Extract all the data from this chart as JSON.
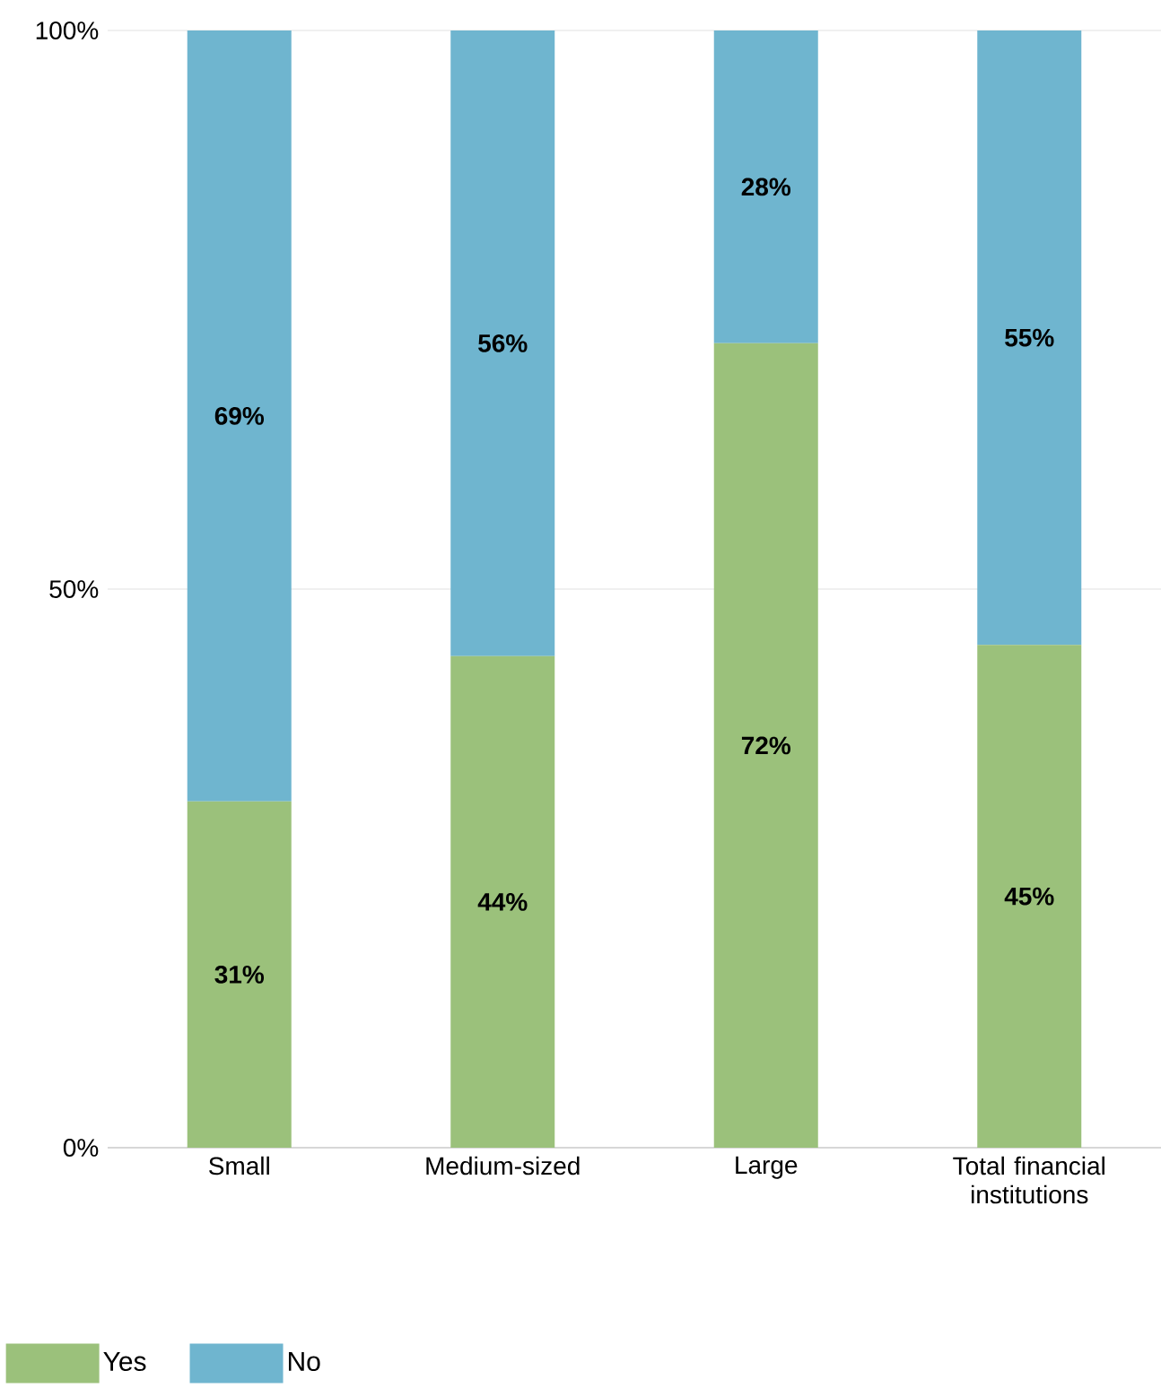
{
  "chart_data": {
    "type": "bar",
    "stacked": true,
    "categories": [
      "Small",
      "Medium-sized",
      "Large",
      "Total financial institutions"
    ],
    "series": [
      {
        "name": "Yes",
        "color": "#9bc17b",
        "values": [
          31,
          44,
          72,
          45
        ],
        "value_labels": [
          "31%",
          "44%",
          "72%",
          "45%"
        ]
      },
      {
        "name": "No",
        "color": "#6fb5cf",
        "values": [
          69,
          56,
          28,
          55
        ],
        "value_labels": [
          "69%",
          "56%",
          "28%",
          "55%"
        ]
      }
    ],
    "ylim": [
      0,
      100
    ],
    "yticks": [
      {
        "value": 0,
        "label": "0%"
      },
      {
        "value": 50,
        "label": "50%"
      },
      {
        "value": 100,
        "label": "100%"
      }
    ],
    "grid": "y",
    "legend": "bottom left"
  }
}
